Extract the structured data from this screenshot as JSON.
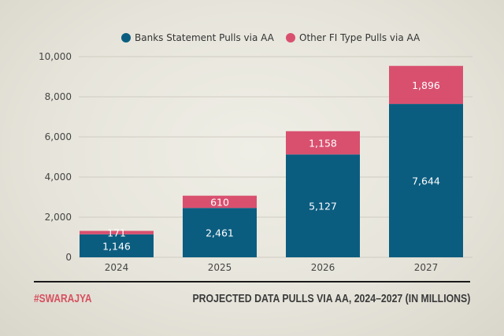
{
  "chart_data": {
    "type": "bar",
    "stacked": true,
    "categories": [
      "2024",
      "2025",
      "2026",
      "2027"
    ],
    "series": [
      {
        "name": "Banks Statement Pulls via AA",
        "values": [
          1146,
          2461,
          5127,
          7644
        ],
        "labels": [
          "1,146",
          "2,461",
          "5,127",
          "7,644"
        ],
        "color": "#0b5d80"
      },
      {
        "name": "Other FI Type Pulls via AA",
        "values": [
          171,
          610,
          1158,
          1896
        ],
        "labels": [
          "171",
          "610",
          "1,158",
          "1,896"
        ],
        "color": "#d9506f"
      }
    ],
    "ylim": [
      0,
      10000
    ],
    "yticks": [
      0,
      2000,
      4000,
      6000,
      8000,
      10000
    ],
    "ytick_labels": [
      "0",
      "2,000",
      "4,000",
      "6,000",
      "8,000",
      "10,000"
    ],
    "grid": true,
    "legend": "top-center",
    "title": "PROJECTED DATA PULLS VIA AA, 2024–2027 (IN MILLIONS)"
  },
  "footer": {
    "brand": "#SWARAJYA",
    "title": "PROJECTED DATA PULLS VIA AA, 2024–2027 (IN MILLIONS)"
  }
}
